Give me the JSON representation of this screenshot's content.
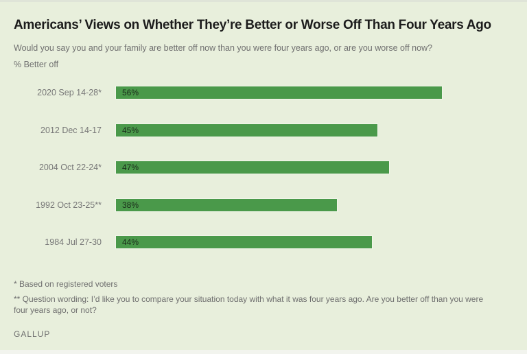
{
  "title": "Americans’ Views on Whether They’re Better or Worse Off Than Four Years Ago",
  "subtitle": "Would you say you and your family are better off now than you were four years ago, or are you worse off now?",
  "unit_label": "% Better off",
  "notes": [
    "* Based on registered voters",
    "** Question wording: I’d like you to compare your situation today with what it was four years ago. Are you better off than you were four years ago, or not?"
  ],
  "brand": "GALLUP",
  "colors": {
    "bar": "#4a994a",
    "background": "#e8efdc"
  },
  "chart_data": {
    "type": "bar",
    "orientation": "horizontal",
    "title": "Americans’ Views on Whether They’re Better or Worse Off Than Four Years Ago",
    "xlabel": "",
    "ylabel": "% Better off",
    "categories": [
      "2020 Sep 14-28*",
      "2012 Dec 14-17",
      "2004 Oct 22-24*",
      "1992 Oct 23-25**",
      "1984 Jul 27-30"
    ],
    "values": [
      56,
      45,
      47,
      38,
      44
    ],
    "value_labels": [
      "56%",
      "45%",
      "47%",
      "38%",
      "44%"
    ],
    "xlim": [
      0,
      100
    ],
    "grid": false,
    "legend": "none"
  }
}
